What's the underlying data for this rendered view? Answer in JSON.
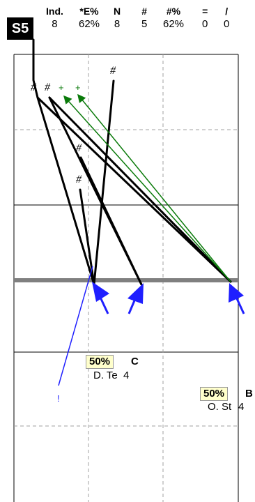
{
  "badge": "S5",
  "stats": {
    "headers": [
      "Ind.",
      "*E%",
      "N",
      "#",
      "#%",
      "=",
      "/"
    ],
    "values": [
      "8",
      "62%",
      "8",
      "5",
      "62%",
      "0",
      "0"
    ]
  },
  "marks": {
    "hash": "#",
    "plus": "+",
    "bang": "!"
  },
  "nodes": {
    "c": {
      "pct": "50%",
      "letter": "C",
      "name": "D. Te",
      "count": "4"
    },
    "b": {
      "pct": "50%",
      "letter": "B",
      "name": "O. St",
      "count": "4"
    }
  },
  "colors": {
    "line": "#000000",
    "green": "#0a7a0a",
    "blue": "#1f1fff",
    "bar": "#808080",
    "grid": "#a0a0a0"
  }
}
